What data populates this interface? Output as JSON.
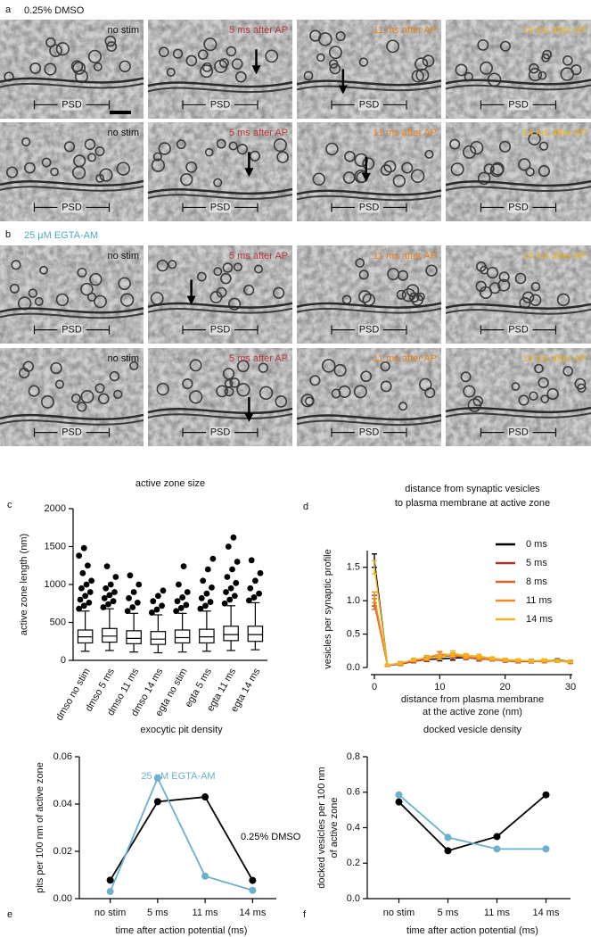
{
  "figure_panels": [
    {
      "label": "a",
      "title": "0.25% DMSO",
      "title_color": "#111111",
      "images": [
        {
          "condition": "no stim",
          "color": "#111111",
          "psd": "PSD"
        },
        {
          "condition": "5 ms after AP",
          "color": "#b8393b",
          "psd": "PSD"
        },
        {
          "condition": "11 ms after AP",
          "color": "#e8821e",
          "psd": "PSD"
        },
        {
          "condition": "14 ms after AP",
          "color": "#f0b020",
          "psd": "PSD"
        },
        {
          "condition": "no stim",
          "color": "#111111",
          "psd": "PSD"
        },
        {
          "condition": "5 ms after AP",
          "color": "#b8393b",
          "psd": "PSD"
        },
        {
          "condition": "11 ms after AP",
          "color": "#e8821e",
          "psd": "PSD"
        },
        {
          "condition": "14 ms after AP",
          "color": "#f0b020",
          "psd": "PSD"
        }
      ]
    },
    {
      "label": "b",
      "title": "25 µM EGTA-AM",
      "title_color": "#4fa8c8",
      "images": [
        {
          "condition": "no stim",
          "color": "#111111",
          "psd": "PSD"
        },
        {
          "condition": "5 ms after AP",
          "color": "#b8393b",
          "psd": "PSD"
        },
        {
          "condition": "11 ms after AP",
          "color": "#e8821e",
          "psd": "PSD"
        },
        {
          "condition": "14 ms after AP",
          "color": "#f0b020",
          "psd": "PSD"
        },
        {
          "condition": "no stim",
          "color": "#111111",
          "psd": "PSD"
        },
        {
          "condition": "5 ms after AP",
          "color": "#b8393b",
          "psd": "PSD"
        },
        {
          "condition": "11 ms after AP",
          "color": "#e8821e",
          "psd": "PSD"
        },
        {
          "condition": "14 ms after AP",
          "color": "#f0b020",
          "psd": "PSD"
        }
      ]
    }
  ],
  "chart_data": [
    {
      "type": "box",
      "label": "c",
      "title": [
        "active zone size"
      ],
      "y_label": [
        "active zone length (nm)"
      ],
      "categories": [
        "dmso no stim",
        "dmso 5 ms",
        "dmso 11 ms",
        "dmso 14 ms",
        "egta no stim",
        "egta 5 ms",
        "egta 11 ms",
        "egta 14 ms"
      ],
      "boxes": [
        {
          "whislo": 120,
          "q1": 230,
          "med": 310,
          "q3": 400,
          "whishi": 650,
          "fliers": [
            680,
            720,
            760,
            800,
            850,
            900,
            950,
            1000,
            1050,
            1150,
            1250,
            1380,
            1480
          ]
        },
        {
          "whislo": 130,
          "q1": 240,
          "med": 320,
          "q3": 420,
          "whishi": 680,
          "fliers": [
            700,
            740,
            780,
            820,
            860,
            900,
            950,
            1000,
            1100,
            1240
          ]
        },
        {
          "whislo": 110,
          "q1": 220,
          "med": 290,
          "q3": 390,
          "whishi": 620,
          "fliers": [
            650,
            700,
            760,
            820,
            900,
            1000,
            1120
          ]
        },
        {
          "whislo": 100,
          "q1": 210,
          "med": 280,
          "q3": 380,
          "whishi": 600,
          "fliers": [
            630,
            670,
            720,
            780,
            850,
            920
          ]
        },
        {
          "whislo": 110,
          "q1": 230,
          "med": 300,
          "q3": 400,
          "whishi": 620,
          "fliers": [
            650,
            690,
            730,
            780,
            830,
            900,
            1000,
            1240
          ]
        },
        {
          "whislo": 120,
          "q1": 230,
          "med": 310,
          "q3": 410,
          "whishi": 650,
          "fliers": [
            680,
            720,
            770,
            820,
            880,
            960,
            1050,
            1200,
            1340
          ]
        },
        {
          "whislo": 130,
          "q1": 260,
          "med": 340,
          "q3": 450,
          "whishi": 720,
          "fliers": [
            750,
            800,
            850,
            900,
            950,
            1020,
            1100,
            1200,
            1300,
            1500,
            1620
          ]
        },
        {
          "whislo": 140,
          "q1": 250,
          "med": 340,
          "q3": 450,
          "whishi": 760,
          "fliers": [
            790,
            830,
            880,
            950,
            1050,
            1150,
            1320
          ]
        }
      ],
      "color": "#000000",
      "ylim": [
        0,
        2000
      ],
      "yticks": [
        0,
        500,
        1000,
        1500,
        2000
      ]
    },
    {
      "type": "line",
      "label": "d",
      "title": [
        "distance from synaptic vesicles",
        "to plasma membrane at active zone"
      ],
      "y_label": [
        "vesicles per synaptic profile"
      ],
      "x_label": [
        "distance from plasma membrane",
        "at the active zone (nm)"
      ],
      "x": [
        0,
        2,
        4,
        6,
        8,
        10,
        12,
        14,
        16,
        18,
        20,
        22,
        24,
        26,
        28,
        30
      ],
      "series": [
        {
          "name": "0 ms",
          "color": "#000000",
          "values": [
            1.6,
            0.03,
            0.06,
            0.1,
            0.12,
            0.13,
            0.14,
            0.15,
            0.13,
            0.12,
            0.11,
            0.1,
            0.1,
            0.1,
            0.11,
            0.09
          ],
          "errors": [
            0.1,
            0.01,
            0.02,
            0.02,
            0.03,
            0.03,
            0.03,
            0.03,
            0.03,
            0.02,
            0.02,
            0.02,
            0.02,
            0.02,
            0.02,
            0.02
          ]
        },
        {
          "name": "5 ms",
          "color": "#a83232",
          "values": [
            1.0,
            0.03,
            0.05,
            0.09,
            0.12,
            0.16,
            0.18,
            0.15,
            0.13,
            0.12,
            0.1,
            0.09,
            0.09,
            0.1,
            0.1,
            0.08
          ],
          "errors": [
            0.08,
            0.01,
            0.02,
            0.02,
            0.03,
            0.03,
            0.03,
            0.03,
            0.03,
            0.02,
            0.02,
            0.02,
            0.02,
            0.02,
            0.02,
            0.02
          ]
        },
        {
          "name": "8 ms",
          "color": "#e0602a",
          "values": [
            0.95,
            0.04,
            0.06,
            0.1,
            0.14,
            0.19,
            0.17,
            0.16,
            0.14,
            0.12,
            0.11,
            0.1,
            0.1,
            0.09,
            0.1,
            0.08
          ],
          "errors": [
            0.08,
            0.01,
            0.02,
            0.02,
            0.03,
            0.04,
            0.03,
            0.03,
            0.03,
            0.02,
            0.02,
            0.02,
            0.02,
            0.02,
            0.02,
            0.02
          ]
        },
        {
          "name": "11 ms",
          "color": "#f08c20",
          "values": [
            1.05,
            0.03,
            0.07,
            0.11,
            0.15,
            0.2,
            0.19,
            0.16,
            0.15,
            0.13,
            0.11,
            0.1,
            0.1,
            0.1,
            0.1,
            0.09
          ],
          "errors": [
            0.08,
            0.01,
            0.02,
            0.02,
            0.03,
            0.04,
            0.03,
            0.03,
            0.03,
            0.02,
            0.02,
            0.02,
            0.02,
            0.02,
            0.02,
            0.02
          ]
        },
        {
          "name": "14 ms",
          "color": "#f0b820",
          "values": [
            1.5,
            0.04,
            0.06,
            0.12,
            0.14,
            0.15,
            0.21,
            0.18,
            0.17,
            0.14,
            0.12,
            0.11,
            0.1,
            0.11,
            0.1,
            0.09
          ],
          "errors": [
            0.1,
            0.01,
            0.02,
            0.02,
            0.03,
            0.03,
            0.04,
            0.03,
            0.03,
            0.02,
            0.02,
            0.02,
            0.02,
            0.02,
            0.02,
            0.02
          ]
        }
      ],
      "xlim": [
        0,
        30
      ],
      "xticks": [
        0,
        10,
        20,
        30
      ],
      "ylim": [
        0,
        1.75
      ],
      "yticks": [
        {
          "value": 0,
          "label": "0.0"
        },
        0.5,
        {
          "value": 1,
          "label": "1.0"
        },
        1.5
      ],
      "legend": "upper-right"
    },
    {
      "type": "line",
      "label": "e",
      "title": [
        "exocytic pit density"
      ],
      "y_label": [
        "pits per 100 nm of active zone"
      ],
      "x_label": [
        "time after action potential (ms)"
      ],
      "categories": [
        "no stim",
        "5 ms",
        "11 ms",
        "14 ms"
      ],
      "series": [
        {
          "name": "0.25% DMSO",
          "color": "#000000",
          "values": [
            0.0078,
            0.041,
            0.043,
            0.0077
          ]
        },
        {
          "name": "25 µM EGTA-AM",
          "color": "#6bb0cc",
          "values": [
            0.003,
            0.051,
            0.0095,
            0.0035
          ]
        }
      ],
      "ylim": [
        0,
        0.06
      ],
      "yticks": [
        {
          "value": 0,
          "label": "0.00"
        },
        0.02,
        0.04,
        0.06
      ]
    },
    {
      "type": "line",
      "label": "f",
      "title": [
        "docked vesicle density"
      ],
      "y_label": [
        "docked vesicles per 100 nm",
        "of active zone"
      ],
      "x_label": [
        "time after action potential (ms)"
      ],
      "categories": [
        "no stim",
        "5 ms",
        "11 ms",
        "14 ms"
      ],
      "series": [
        {
          "color": "#000000",
          "values": [
            0.545,
            0.27,
            0.35,
            0.585
          ]
        },
        {
          "color": "#6bb0cc",
          "values": [
            0.585,
            0.345,
            0.28,
            0.28
          ]
        }
      ],
      "ylim": [
        0,
        0.8
      ],
      "yticks": [
        {
          "value": 0,
          "label": "0.0"
        },
        0.2,
        0.4,
        0.6,
        0.8
      ]
    }
  ]
}
